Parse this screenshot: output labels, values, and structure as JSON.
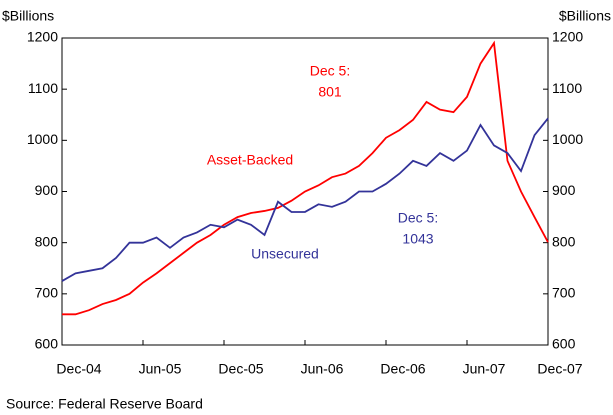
{
  "chart_data": {
    "type": "line",
    "y_axis_label": "$Billions",
    "y2_axis_label": "$Billions",
    "source": "Source: Federal Reserve Board",
    "x": [
      "2004-12",
      "2005-01",
      "2005-02",
      "2005-03",
      "2005-04",
      "2005-05",
      "2005-06",
      "2005-07",
      "2005-08",
      "2005-09",
      "2005-10",
      "2005-11",
      "2005-12",
      "2006-01",
      "2006-02",
      "2006-03",
      "2006-04",
      "2006-05",
      "2006-06",
      "2006-07",
      "2006-08",
      "2006-09",
      "2006-10",
      "2006-11",
      "2006-12",
      "2007-01",
      "2007-02",
      "2007-03",
      "2007-04",
      "2007-05",
      "2007-06",
      "2007-07",
      "2007-08",
      "2007-09",
      "2007-10",
      "2007-11",
      "2007-12"
    ],
    "series": [
      {
        "name": "Asset-Backed",
        "color": "#ff0000",
        "values": [
          660,
          660,
          668,
          680,
          688,
          700,
          722,
          740,
          760,
          780,
          800,
          815,
          835,
          850,
          858,
          862,
          868,
          882,
          900,
          912,
          928,
          935,
          950,
          975,
          1005,
          1020,
          1040,
          1075,
          1060,
          1055,
          1085,
          1150,
          1190,
          960,
          900,
          850,
          801
        ]
      },
      {
        "name": "Unsecured",
        "color": "#333399",
        "values": [
          725,
          740,
          745,
          750,
          770,
          800,
          800,
          810,
          790,
          810,
          820,
          835,
          830,
          845,
          835,
          815,
          880,
          860,
          860,
          875,
          870,
          880,
          900,
          900,
          915,
          935,
          960,
          950,
          975,
          960,
          980,
          1030,
          990,
          975,
          940,
          1010,
          1043
        ]
      }
    ],
    "annotations": [
      {
        "lines": [
          "Dec 5:",
          "801"
        ],
        "color": "#ff0000"
      },
      {
        "lines": [
          "Asset-Backed"
        ],
        "color": "#ff0000"
      },
      {
        "lines": [
          "Unsecured"
        ],
        "color": "#333399"
      },
      {
        "lines": [
          "Dec 5:",
          "1043"
        ],
        "color": "#333399"
      }
    ],
    "xlim": [
      "2004-12",
      "2007-12"
    ],
    "xticks": [
      {
        "value": "2004-12",
        "label": "Dec-04"
      },
      {
        "value": "2005-06",
        "label": "Jun-05"
      },
      {
        "value": "2005-12",
        "label": "Dec-05"
      },
      {
        "value": "2006-06",
        "label": "Jun-06"
      },
      {
        "value": "2006-12",
        "label": "Dec-06"
      },
      {
        "value": "2007-06",
        "label": "Jun-07"
      },
      {
        "value": "2007-12",
        "label": "Dec-07"
      }
    ],
    "ylim": [
      600,
      1200
    ],
    "yticks": [
      600,
      700,
      800,
      900,
      1000,
      1100,
      1200
    ],
    "y2lim": [
      600,
      1200
    ],
    "y2ticks": [
      600,
      700,
      800,
      900,
      1000,
      1100,
      1200
    ]
  }
}
